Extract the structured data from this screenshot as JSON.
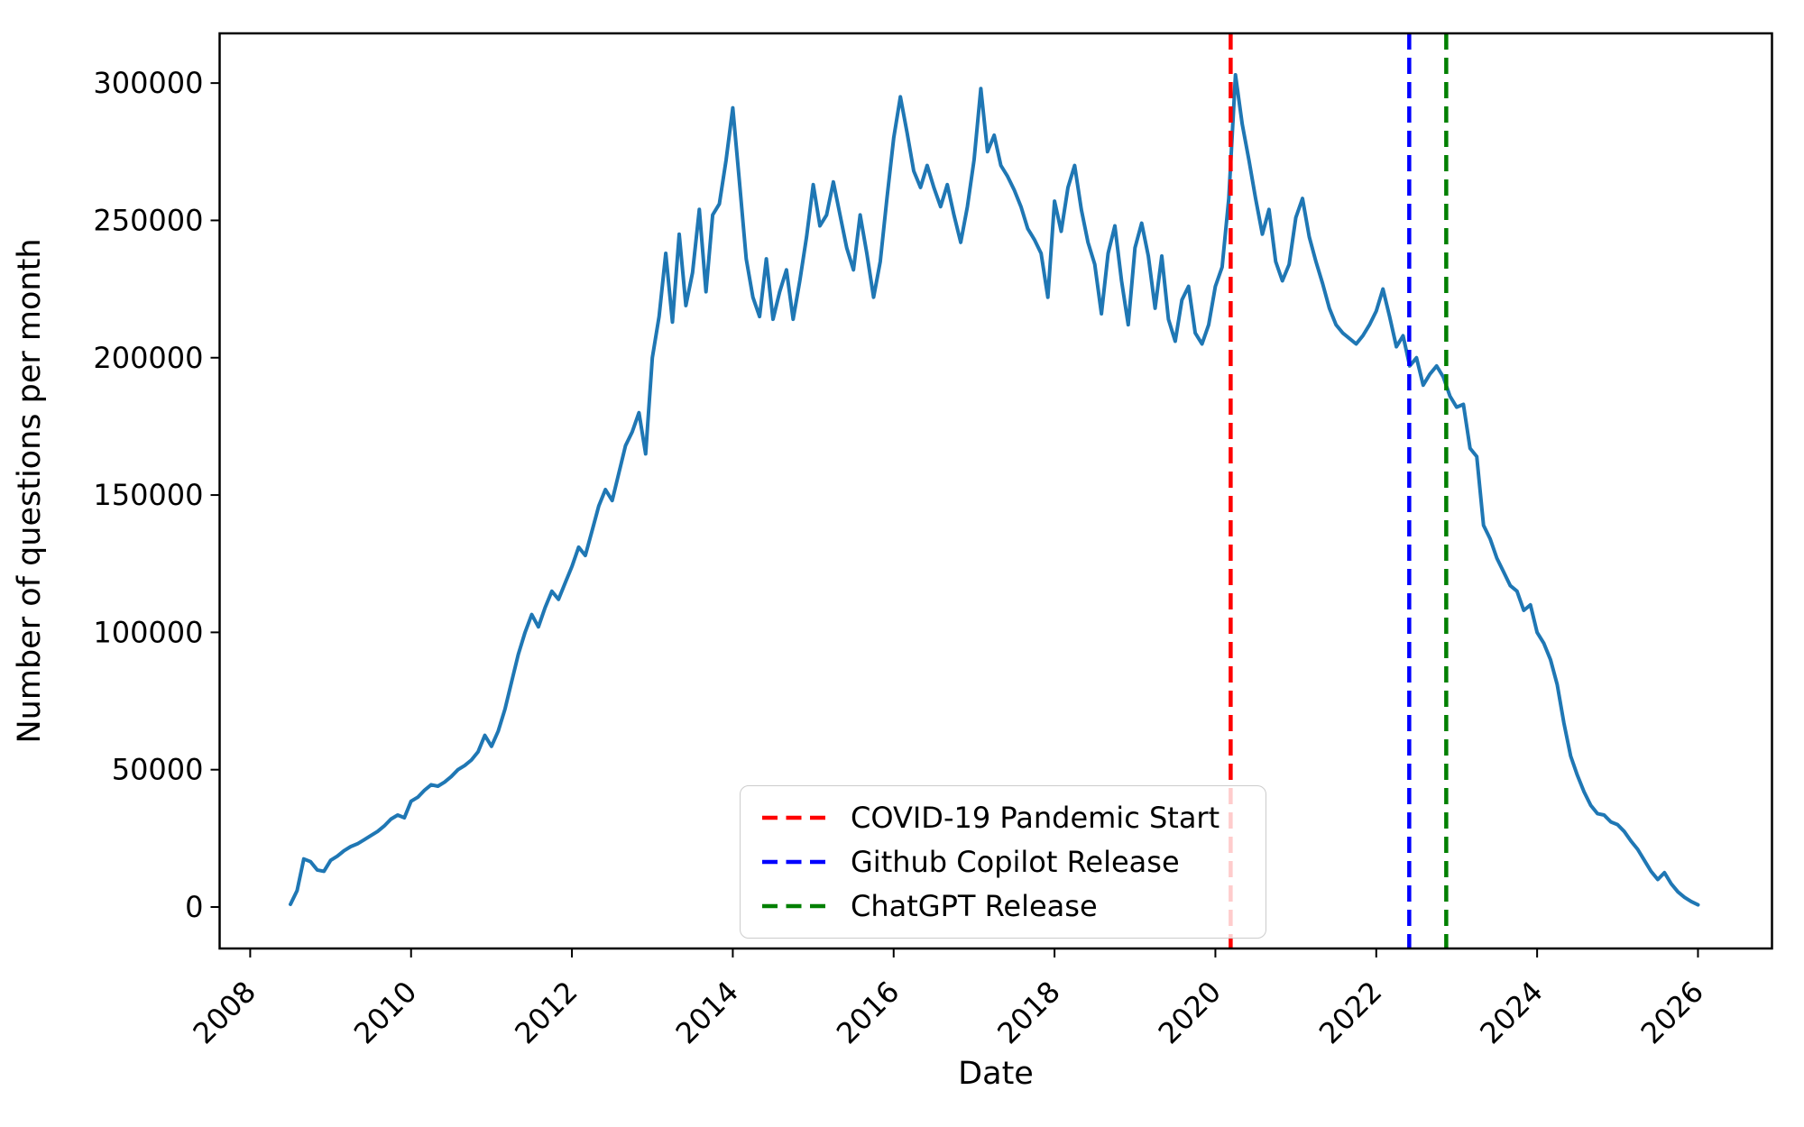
{
  "figure": {
    "background_color": "#ffffff",
    "text_color": "#000000"
  },
  "chart_data": {
    "type": "line",
    "title": "",
    "xlabel": "Date",
    "ylabel": "Number of questions per month",
    "grid": false,
    "legend_position": "lower center",
    "xlim": [
      2007.62,
      2026.92
    ],
    "ylim": [
      -15100,
      318100
    ],
    "x_ticks": [
      2008,
      2010,
      2012,
      2014,
      2016,
      2018,
      2020,
      2022,
      2024,
      2026
    ],
    "x_tick_rotation_deg": 45,
    "y_ticks": [
      0,
      50000,
      100000,
      150000,
      200000,
      250000,
      300000
    ],
    "series": [
      {
        "name": "Number of questions per month",
        "color": "#1f77b4",
        "line_width": 4,
        "frequency": "monthly",
        "start": "2008-07",
        "start_year_frac": 2008.5,
        "values": [
          1000,
          6000,
          17500,
          16500,
          13500,
          13000,
          17000,
          18500,
          20500,
          22000,
          23000,
          24500,
          26000,
          27500,
          29500,
          32000,
          33500,
          32500,
          38500,
          40000,
          42500,
          44500,
          44000,
          45500,
          47500,
          50000,
          51500,
          53500,
          56500,
          62500,
          58500,
          64000,
          72000,
          82000,
          92000,
          100000,
          106500,
          102000,
          109000,
          115000,
          112000,
          118000,
          124000,
          131000,
          128000,
          137000,
          146000,
          152000,
          148000,
          158000,
          168000,
          173000,
          180000,
          165000,
          200000,
          215000,
          238000,
          213000,
          245000,
          219000,
          231000,
          254000,
          224000,
          252000,
          256000,
          272000,
          291000,
          264000,
          236000,
          222000,
          215000,
          236000,
          214000,
          224000,
          232000,
          214000,
          228000,
          244000,
          263000,
          248000,
          252000,
          264000,
          252000,
          240000,
          232000,
          252000,
          238000,
          222000,
          235000,
          258000,
          280000,
          295000,
          282000,
          268000,
          262000,
          270000,
          262000,
          255000,
          263000,
          252000,
          242000,
          255000,
          272000,
          298000,
          275000,
          281000,
          270000,
          266000,
          261000,
          255000,
          247000,
          243000,
          238000,
          222000,
          257000,
          246000,
          262000,
          270000,
          254000,
          242000,
          234000,
          216000,
          238000,
          248000,
          228000,
          212000,
          240000,
          249000,
          237000,
          218000,
          237000,
          214000,
          206000,
          221000,
          226000,
          209000,
          205000,
          212000,
          226000,
          233000,
          258000,
          303000,
          285000,
          272000,
          258000,
          245000,
          254000,
          235000,
          228000,
          234000,
          251000,
          258000,
          244000,
          235000,
          227000,
          218000,
          212000,
          209000,
          207000,
          205000,
          208000,
          212000,
          217000,
          225000,
          215000,
          204000,
          208000,
          197000,
          200000,
          190000,
          194000,
          197000,
          193000,
          186000,
          182000,
          183000,
          167000,
          164000,
          139000,
          134000,
          127000,
          122000,
          117000,
          115000,
          108000,
          110000,
          100000,
          96000,
          90000,
          81000,
          67000,
          55000,
          48000,
          42000,
          37000,
          34000,
          33500,
          31000,
          30000,
          27500,
          24000,
          21000,
          17000,
          13000,
          10000,
          12500,
          8500,
          5500,
          3500,
          2000,
          800
        ]
      }
    ],
    "annotations": [
      {
        "label": "COVID-19 Pandemic Start",
        "color": "#ff0000",
        "x_year": 2020.19,
        "style": "dashed"
      },
      {
        "label": "Github Copilot Release",
        "color": "#0000ff",
        "x_year": 2022.41,
        "style": "dashed"
      },
      {
        "label": "ChatGPT Release",
        "color": "#008000",
        "x_year": 2022.87,
        "style": "dashed"
      }
    ]
  }
}
